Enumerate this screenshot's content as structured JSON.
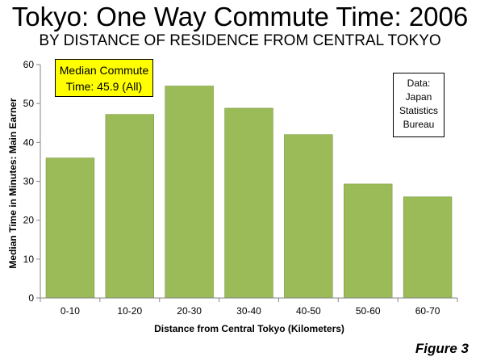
{
  "title": "Tokyo: One Way Commute Time: 2006",
  "subtitle": "BY DISTANCE OF RESIDENCE FROM CENTRAL TOKYO",
  "figure_label": "Figure 3",
  "callout": {
    "line1": "Median Commute",
    "line2": "Time:  45.9 (All)"
  },
  "source_box": {
    "line1": "Data:",
    "line2": "Japan",
    "line3": "Statistics",
    "line4": "Bureau"
  },
  "colors": {
    "bar_fill": "#9bbb59",
    "bar_stroke": "#7a9a3e",
    "callout_fill": "#ffff00"
  },
  "chart_data": {
    "type": "bar",
    "title": "Tokyo: One Way Commute Time: 2006",
    "subtitle": "BY DISTANCE OF RESIDENCE FROM CENTRAL TOKYO",
    "xlabel": "Distance from Central Tokyo (Kilometers)",
    "ylabel": "Median Time in Minutes: Main Earner",
    "categories": [
      "0-10",
      "10-20",
      "20-30",
      "30-40",
      "40-50",
      "50-60",
      "60-70"
    ],
    "values": [
      36,
      47.2,
      54.5,
      48.8,
      42,
      29.3,
      26
    ],
    "ylim": [
      0,
      60
    ],
    "yticks": [
      0,
      10,
      20,
      30,
      40,
      50,
      60
    ],
    "grid": false,
    "legend": "none"
  }
}
